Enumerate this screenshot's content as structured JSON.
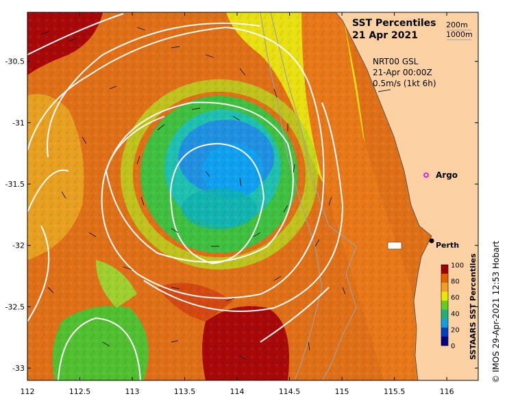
{
  "title": {
    "line1": "SST Percentiles",
    "line2": "21 Apr 2021"
  },
  "depth_legend": [
    "200m",
    "1000m"
  ],
  "current_info": {
    "line1": "NRT00 GSL",
    "line2": "21-Apr 00:00Z",
    "line3": "0.5m/s (1kt 6h)"
  },
  "markers": {
    "argo": "Argo",
    "perth": "Perth"
  },
  "colorbar": {
    "label": "SSTAARS SST Percentiles",
    "ticks": [
      "100",
      "80",
      "60",
      "40",
      "20",
      "0"
    ],
    "colors": [
      "#a00000",
      "#e06000",
      "#f0a020",
      "#e8e800",
      "#60d020",
      "#20b080",
      "#10a0e0",
      "#0040c0",
      "#000080"
    ]
  },
  "axes": {
    "x_ticks": [
      "112",
      "112.5",
      "113",
      "113.5",
      "114",
      "114.5",
      "115",
      "115.5",
      "116"
    ],
    "y_ticks": [
      "-30.5",
      "-31",
      "-31.5",
      "-32",
      "-32.5",
      "-33"
    ],
    "x_range": [
      112,
      116.3
    ],
    "y_range": [
      -33.1,
      -30.1
    ]
  },
  "land_color": "#fcd2a4",
  "copyright": "© IMOS 29-Apr-2021 12:53 Hobart"
}
